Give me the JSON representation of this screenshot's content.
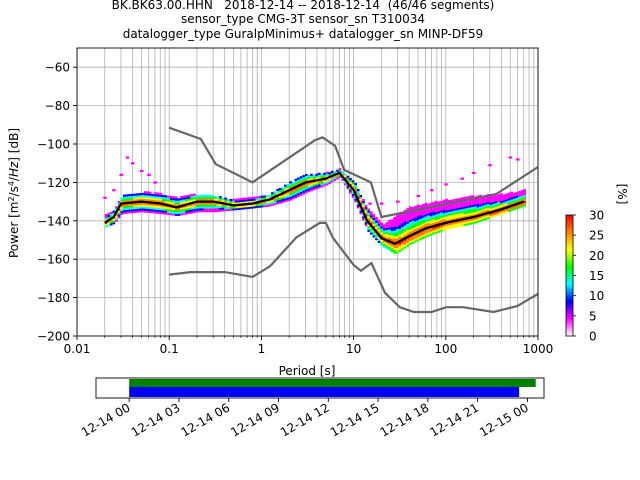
{
  "title_lines": [
    "BK.BK63.00.HHN   2018-12-14 -- 2018-12-14  (46/46 segments)",
    "sensor_type CMG-3T sensor_sn T310034",
    "datalogger_type GuralpMinimus+ datalogger_sn MINP-DF59"
  ],
  "chart_data": [
    {
      "type": "heatmap",
      "title": "BK.BK63.00.HHN   2018-12-14 -- 2018-12-14  (46/46 segments)",
      "xlabel": "Period [s]",
      "ylabel": "Power [m²/s⁴/Hz] [dB]",
      "x_scale": "log",
      "xlim": [
        0.01,
        1000
      ],
      "ylim": [
        -200,
        -50
      ],
      "x_ticks": [
        0.01,
        0.1,
        1,
        10,
        100,
        1000
      ],
      "x_tick_labels": [
        "0.01",
        "0.1",
        "1",
        "10",
        "100",
        "1000"
      ],
      "y_ticks": [
        -200,
        -180,
        -160,
        -140,
        -120,
        -100,
        -80,
        -60
      ],
      "y_tick_labels": [
        "−200",
        "−180",
        "−160",
        "−140",
        "−120",
        "−100",
        "−80",
        "−60"
      ],
      "grid": true,
      "colorbar": {
        "label": "[%]",
        "range": [
          0,
          30
        ],
        "ticks": [
          0,
          5,
          10,
          15,
          20,
          25,
          30
        ],
        "tick_labels": [
          "0",
          "5",
          "10",
          "15",
          "20",
          "25",
          "30"
        ],
        "colors": [
          "#ffffff",
          "#ff00ff",
          "#0000ff",
          "#00ffff",
          "#00ff00",
          "#ffff00",
          "#ff8000",
          "#ff0000"
        ]
      },
      "mean_curve": {
        "color": "#000000",
        "x": [
          0.02,
          0.025,
          0.03,
          0.05,
          0.08,
          0.12,
          0.2,
          0.3,
          0.5,
          0.8,
          1.2,
          2,
          3,
          5,
          7,
          10,
          14,
          20,
          28,
          40,
          60,
          100,
          200,
          400,
          700
        ],
        "y": [
          -141,
          -138,
          -131,
          -130,
          -131,
          -133,
          -130,
          -130,
          -132,
          -131,
          -129,
          -124,
          -120,
          -118,
          -115,
          -124,
          -140,
          -149,
          -152,
          -148,
          -144,
          -141,
          -138,
          -134,
          -130
        ]
      },
      "ppsd_lower_envelope": {
        "x": [
          0.02,
          0.025,
          0.03,
          0.05,
          0.08,
          0.12,
          0.2,
          0.3,
          0.5,
          0.8,
          1.2,
          2,
          3,
          5,
          7,
          10,
          14,
          20,
          28,
          40,
          60,
          100,
          200,
          400,
          700
        ],
        "y": [
          -143,
          -141,
          -136,
          -135,
          -136,
          -137,
          -135,
          -135,
          -134,
          -133,
          -132,
          -129,
          -125,
          -121,
          -117,
          -129,
          -145,
          -153,
          -157,
          -152,
          -148,
          -144,
          -141,
          -136,
          -132
        ]
      },
      "ppsd_upper_envelope": {
        "x": [
          0.02,
          0.025,
          0.03,
          0.05,
          0.08,
          0.12,
          0.2,
          0.3,
          0.5,
          0.8,
          1.2,
          2,
          3,
          5,
          7,
          10,
          14,
          20,
          28,
          40,
          60,
          100,
          200,
          400,
          700
        ],
        "y": [
          -137,
          -134,
          -127,
          -125,
          -126,
          -128,
          -126,
          -127,
          -129,
          -128,
          -126,
          -120,
          -116,
          -115,
          -113,
          -120,
          -134,
          -142,
          -138,
          -133,
          -131,
          -129,
          -127,
          -126,
          -124
        ]
      },
      "sparse_upper_scatter": {
        "color": "#ff00ff",
        "x": [
          0.02,
          0.025,
          0.03,
          0.035,
          0.04,
          0.05,
          0.06,
          0.07,
          15,
          20,
          30,
          50,
          70,
          100,
          150,
          200,
          300,
          500,
          600
        ],
        "y": [
          -128,
          -124,
          -116,
          -107,
          -110,
          -114,
          -116,
          -120,
          -131,
          -131,
          -130,
          -127,
          -124,
          -121,
          -118,
          -115,
          -111,
          -107,
          -108
        ]
      },
      "new_high_noise_model": {
        "color": "#666666",
        "x": [
          0.1,
          0.22,
          0.32,
          0.8,
          3.8,
          4.6,
          6.3,
          7.9,
          15.4,
          20,
          354.8,
          1000
        ],
        "y": [
          -91.5,
          -97.4,
          -110.5,
          -120,
          -98,
          -96.5,
          -101,
          -113.5,
          -120,
          -138,
          -126,
          -112
        ]
      },
      "new_low_noise_model": {
        "color": "#666666",
        "x": [
          0.1,
          0.17,
          0.4,
          0.8,
          1.24,
          2.4,
          4.3,
          5,
          6,
          10,
          12,
          15.6,
          21.9,
          31.6,
          45,
          70,
          101,
          154,
          328,
          600,
          1000
        ],
        "y": [
          -168,
          -166.7,
          -166.7,
          -169.2,
          -163.7,
          -148.6,
          -141.1,
          -141.1,
          -149,
          -163,
          -166,
          -162,
          -177.5,
          -185,
          -187.5,
          -187.5,
          -185,
          -185,
          -187.5,
          -184.4,
          -178
        ]
      }
    },
    {
      "type": "bar",
      "title": "",
      "x_ticks_labels": [
        "12-14 00",
        "12-14 03",
        "12-14 06",
        "12-14 09",
        "12-14 12",
        "12-14 15",
        "12-14 18",
        "12-14 21",
        "12-15 00"
      ],
      "xlim": [
        "12-13 22:00",
        "12-15 01:00"
      ],
      "series": [
        {
          "color": "#008000",
          "values": [
            {
              "start": "12-14 00:00",
              "end": "12-15 00:30"
            }
          ]
        },
        {
          "color": "#0000ff",
          "values": [
            {
              "start": "12-14 00:00",
              "end": "12-14 23:30"
            }
          ]
        }
      ]
    }
  ]
}
